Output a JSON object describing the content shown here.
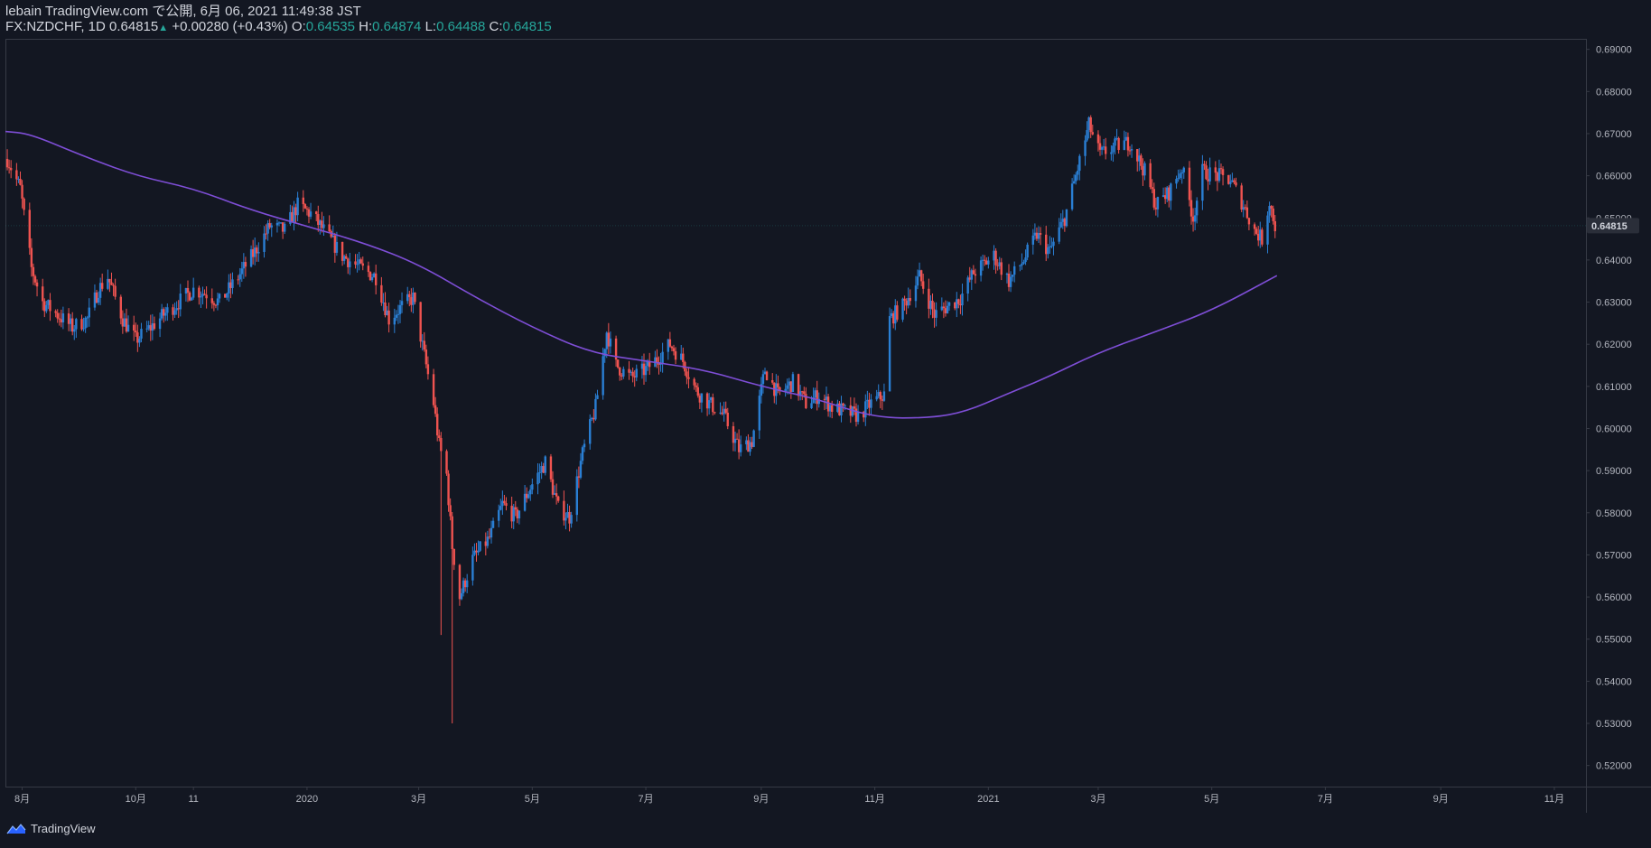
{
  "header": {
    "publish_line": "lebain TradingView.com で公開, 6月 06, 2021 11:49:38 JST",
    "symbol": "FX:NZDCHF, 1D",
    "last": "0.64815",
    "change_arrow": "▲",
    "change": "+0.00280 (+0.43%)",
    "o_label": "O:",
    "o_val": "0.64535",
    "h_label": "H:",
    "h_val": "0.64874",
    "l_label": "L:",
    "l_val": "0.64488",
    "c_label": "C:",
    "c_val": "0.64815"
  },
  "footer": {
    "brand": "TradingView"
  },
  "colors": {
    "background": "#131722",
    "up": "#2a7fd4",
    "down": "#ef5350",
    "ma": "#7e4ed6",
    "axis_text": "#b2b5be",
    "grid_border": "#363a45",
    "ohlc_value": "#26a69a",
    "price_tag_bg": "#2a2e39"
  },
  "chart_data": {
    "type": "candlestick",
    "symbol": "FX:NZDCHF",
    "interval": "1D",
    "y_range": [
      0.515,
      0.6925
    ],
    "y_ticks": [
      "0.69000",
      "0.68000",
      "0.67000",
      "0.66000",
      "0.65000",
      "0.64000",
      "0.63000",
      "0.62000",
      "0.61000",
      "0.60000",
      "0.59000",
      "0.58000",
      "0.57000",
      "0.56000",
      "0.55000",
      "0.54000",
      "0.53000",
      "0.52000"
    ],
    "x_range": [
      "2019-07-23",
      "2021-11-18"
    ],
    "x_ticks": [
      {
        "date": "2019-08-01",
        "label": "8月"
      },
      {
        "date": "2019-10-01",
        "label": "10月"
      },
      {
        "date": "2019-11-01",
        "label": "11"
      },
      {
        "date": "2020-01-01",
        "label": "2020"
      },
      {
        "date": "2020-03-01",
        "label": "3月"
      },
      {
        "date": "2020-05-01",
        "label": "5月"
      },
      {
        "date": "2020-07-01",
        "label": "7月"
      },
      {
        "date": "2020-09-01",
        "label": "9月"
      },
      {
        "date": "2020-11-01",
        "label": "11月"
      },
      {
        "date": "2021-01-01",
        "label": "2021"
      },
      {
        "date": "2021-03-01",
        "label": "3月"
      },
      {
        "date": "2021-05-01",
        "label": "5月"
      },
      {
        "date": "2021-07-01",
        "label": "7月"
      },
      {
        "date": "2021-09-01",
        "label": "9月"
      },
      {
        "date": "2021-11-01",
        "label": "11月"
      }
    ],
    "current_price_label": "0.64815",
    "current_price": 0.64815,
    "close_path": [
      [
        "2019-07-24",
        0.664
      ],
      [
        "2019-07-31",
        0.657
      ],
      [
        "2019-08-06",
        0.638
      ],
      [
        "2019-08-12",
        0.63
      ],
      [
        "2019-08-20",
        0.627
      ],
      [
        "2019-08-28",
        0.624
      ],
      [
        "2019-09-05",
        0.626
      ],
      [
        "2019-09-11",
        0.633
      ],
      [
        "2019-09-16",
        0.636
      ],
      [
        "2019-09-24",
        0.626
      ],
      [
        "2019-10-01",
        0.621
      ],
      [
        "2019-10-09",
        0.624
      ],
      [
        "2019-10-16",
        0.627
      ],
      [
        "2019-10-24",
        0.63
      ],
      [
        "2019-11-01",
        0.633
      ],
      [
        "2019-11-08",
        0.632
      ],
      [
        "2019-11-15",
        0.63
      ],
      [
        "2019-11-25",
        0.636
      ],
      [
        "2019-12-04",
        0.642
      ],
      [
        "2019-12-12",
        0.648
      ],
      [
        "2019-12-20",
        0.647
      ],
      [
        "2019-12-27",
        0.653
      ],
      [
        "2020-01-03",
        0.651
      ],
      [
        "2020-01-10",
        0.647
      ],
      [
        "2020-01-20",
        0.641
      ],
      [
        "2020-01-30",
        0.638
      ],
      [
        "2020-02-07",
        0.636
      ],
      [
        "2020-02-14",
        0.626
      ],
      [
        "2020-02-21",
        0.629
      ],
      [
        "2020-02-27",
        0.631
      ],
      [
        "2020-03-05",
        0.615
      ],
      [
        "2020-03-09",
        0.606
      ],
      [
        "2020-03-12",
        0.596
      ],
      [
        "2020-03-16",
        0.589
      ],
      [
        "2020-03-19",
        0.572
      ],
      [
        "2020-03-23",
        0.56
      ],
      [
        "2020-03-30",
        0.569
      ],
      [
        "2020-04-08",
        0.574
      ],
      [
        "2020-04-15",
        0.582
      ],
      [
        "2020-04-22",
        0.579
      ],
      [
        "2020-04-30",
        0.586
      ],
      [
        "2020-05-08",
        0.592
      ],
      [
        "2020-05-15",
        0.581
      ],
      [
        "2020-05-21",
        0.579
      ],
      [
        "2020-05-28",
        0.594
      ],
      [
        "2020-06-04",
        0.605
      ],
      [
        "2020-06-10",
        0.623
      ],
      [
        "2020-06-15",
        0.615
      ],
      [
        "2020-06-23",
        0.612
      ],
      [
        "2020-07-01",
        0.614
      ],
      [
        "2020-07-08",
        0.617
      ],
      [
        "2020-07-14",
        0.62
      ],
      [
        "2020-07-21",
        0.616
      ],
      [
        "2020-07-28",
        0.609
      ],
      [
        "2020-08-04",
        0.606
      ],
      [
        "2020-08-12",
        0.603
      ],
      [
        "2020-08-20",
        0.595
      ],
      [
        "2020-08-27",
        0.597
      ],
      [
        "2020-09-03",
        0.614
      ],
      [
        "2020-09-10",
        0.608
      ],
      [
        "2020-09-18",
        0.611
      ],
      [
        "2020-09-25",
        0.606
      ],
      [
        "2020-10-02",
        0.608
      ],
      [
        "2020-10-09",
        0.605
      ],
      [
        "2020-10-16",
        0.604
      ],
      [
        "2020-10-23",
        0.603
      ],
      [
        "2020-10-30",
        0.606
      ],
      [
        "2020-11-06",
        0.608
      ],
      [
        "2020-11-09",
        0.626
      ],
      [
        "2020-11-16",
        0.629
      ],
      [
        "2020-11-25",
        0.636
      ],
      [
        "2020-12-03",
        0.627
      ],
      [
        "2020-12-10",
        0.629
      ],
      [
        "2020-12-17",
        0.631
      ],
      [
        "2020-12-24",
        0.637
      ],
      [
        "2021-01-04",
        0.641
      ],
      [
        "2021-01-12",
        0.635
      ],
      [
        "2021-01-20",
        0.64
      ],
      [
        "2021-01-27",
        0.646
      ],
      [
        "2021-02-03",
        0.642
      ],
      [
        "2021-02-11",
        0.65
      ],
      [
        "2021-02-17",
        0.66
      ],
      [
        "2021-02-24",
        0.672
      ],
      [
        "2021-03-02",
        0.665
      ],
      [
        "2021-03-10",
        0.667
      ],
      [
        "2021-03-18",
        0.668
      ],
      [
        "2021-03-26",
        0.661
      ],
      [
        "2021-04-01",
        0.653
      ],
      [
        "2021-04-08",
        0.656
      ],
      [
        "2021-04-15",
        0.662
      ],
      [
        "2021-04-21",
        0.65
      ],
      [
        "2021-04-26",
        0.661
      ],
      [
        "2021-05-04",
        0.66
      ],
      [
        "2021-05-11",
        0.659
      ],
      [
        "2021-05-18",
        0.653
      ],
      [
        "2021-05-24",
        0.647
      ],
      [
        "2021-05-28",
        0.645
      ],
      [
        "2021-06-01",
        0.654
      ],
      [
        "2021-06-04",
        0.648
      ]
    ],
    "ma_path": [
      [
        "2019-07-23",
        0.6705
      ],
      [
        "2019-08-05",
        0.67
      ],
      [
        "2019-09-01",
        0.665
      ],
      [
        "2019-10-01",
        0.66
      ],
      [
        "2019-11-01",
        0.657
      ],
      [
        "2019-12-01",
        0.652
      ],
      [
        "2020-01-01",
        0.648
      ],
      [
        "2020-02-01",
        0.644
      ],
      [
        "2020-03-01",
        0.639
      ],
      [
        "2020-04-01",
        0.631
      ],
      [
        "2020-05-01",
        0.624
      ],
      [
        "2020-06-01",
        0.618
      ],
      [
        "2020-07-01",
        0.616
      ],
      [
        "2020-08-01",
        0.614
      ],
      [
        "2020-09-01",
        0.61
      ],
      [
        "2020-10-01",
        0.607
      ],
      [
        "2020-11-01",
        0.6025
      ],
      [
        "2020-12-01",
        0.6025
      ],
      [
        "2020-12-20",
        0.604
      ],
      [
        "2021-01-10",
        0.608
      ],
      [
        "2021-02-01",
        0.612
      ],
      [
        "2021-03-01",
        0.618
      ],
      [
        "2021-04-01",
        0.623
      ],
      [
        "2021-05-01",
        0.628
      ],
      [
        "2021-06-05",
        0.6363
      ]
    ]
  }
}
